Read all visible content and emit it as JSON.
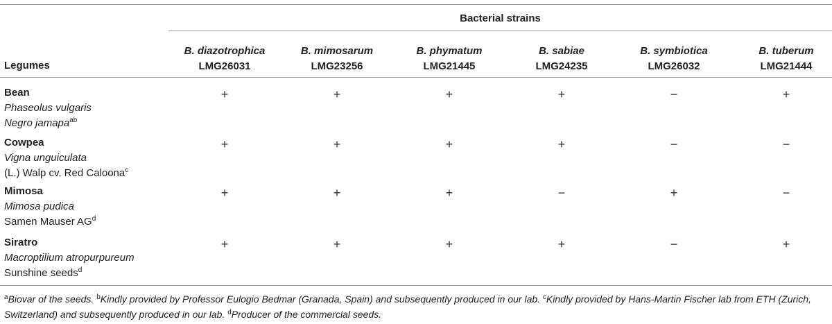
{
  "table": {
    "group_header": "Bacterial strains",
    "row_header": "Legumes",
    "columns": [
      {
        "species": "B. diazotrophica",
        "strain": "LMG26031"
      },
      {
        "species": "B. mimosarum",
        "strain": "LMG23256"
      },
      {
        "species": "B. phymatum",
        "strain": "LMG21445"
      },
      {
        "species": "B. sabiae",
        "strain": "LMG24235"
      },
      {
        "species": "B. symbiotica",
        "strain": "LMG26032"
      },
      {
        "species": "B. tuberum",
        "strain": "LMG21444"
      }
    ],
    "rows": [
      {
        "name": "Bean",
        "scientific": "Phaseolus vulgaris",
        "cultivar": "Negro jamapa",
        "cultivar_italic": true,
        "cultivar_sup": "ab",
        "values": [
          "+",
          "+",
          "+",
          "+",
          "−",
          "+"
        ]
      },
      {
        "name": "Cowpea",
        "scientific": "Vigna unguiculata",
        "cultivar": "(L.) Walp cv. Red Caloona",
        "cultivar_italic": false,
        "cultivar_sup": "c",
        "values": [
          "+",
          "+",
          "+",
          "+",
          "−",
          "−"
        ]
      },
      {
        "name": "Mimosa",
        "scientific": "Mimosa pudica",
        "cultivar": "Samen Mauser AG",
        "cultivar_italic": false,
        "cultivar_sup": "d",
        "values": [
          "+",
          "+",
          "+",
          "−",
          "+",
          "−"
        ]
      },
      {
        "name": "Siratro",
        "scientific": "Macroptilium atropurpureum",
        "cultivar": "Sunshine seeds",
        "cultivar_italic": false,
        "cultivar_sup": "d",
        "values": [
          "+",
          "+",
          "+",
          "+",
          "−",
          "+"
        ]
      }
    ]
  },
  "footnotes": [
    {
      "mark": "a",
      "text": "Biovar of the seeds."
    },
    {
      "mark": "b",
      "text": "Kindly provided by Professor Eulogio Bedmar (Granada, Spain) and subsequently produced in our lab."
    },
    {
      "mark": "c",
      "text": "Kindly provided by Hans-Martin Fischer lab from ETH (Zurich, Switzerland) and subsequently produced in our lab."
    },
    {
      "mark": "d",
      "text": "Producer of the commercial seeds."
    }
  ]
}
